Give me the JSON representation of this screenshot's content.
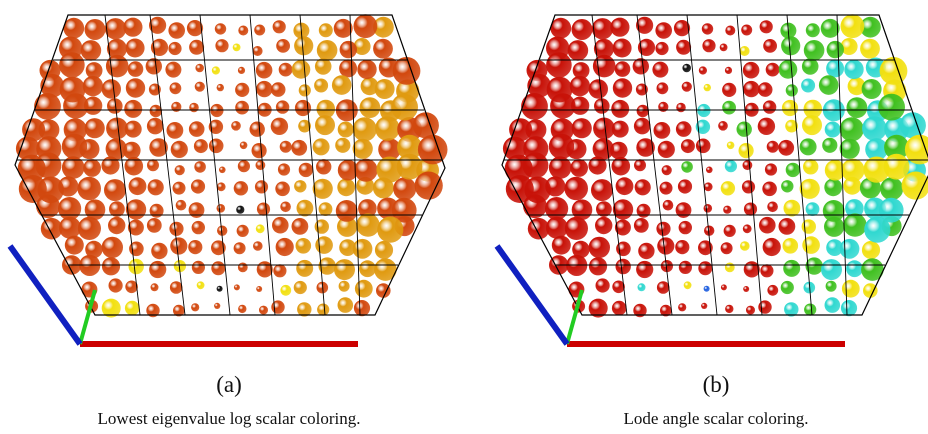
{
  "panels": [
    {
      "label": "(a)",
      "caption": "Lowest eigenvalue log scalar coloring."
    },
    {
      "label": "(b)",
      "caption": "Lode angle scalar coloring."
    }
  ]
}
